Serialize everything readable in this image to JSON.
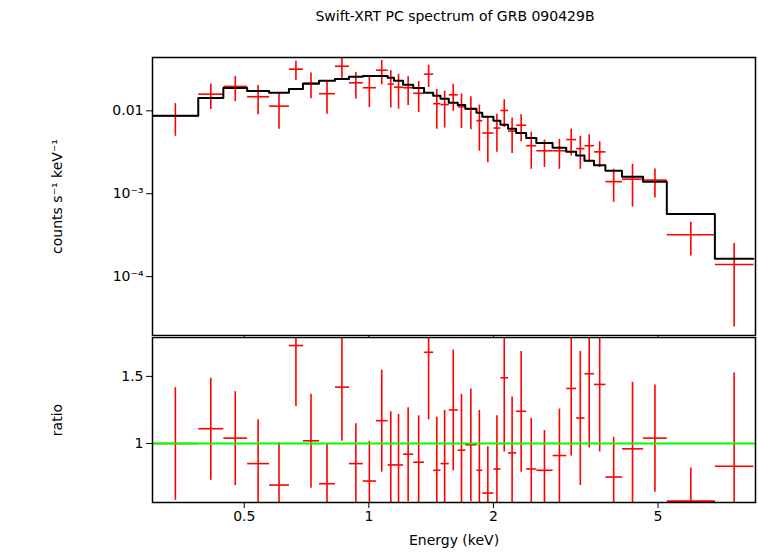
{
  "chart_data": [
    {
      "type": "scatter",
      "title": "Swift-XRT PC spectrum of GRB 090429B",
      "y_label": "counts s⁻¹ keV⁻¹",
      "log": true,
      "tick_labels": "y",
      "xlim": [
        0.3,
        8.6
      ],
      "ylim": [
        1.95e-05,
        0.044
      ],
      "xticks": [
        0.5,
        1,
        2,
        5
      ],
      "yticks": [
        0.01,
        {
          "value": 0.001,
          "label": "10⁻³"
        },
        {
          "value": 0.0001,
          "label": "10⁻⁴"
        }
      ],
      "bins": [
        0.3,
        0.387,
        0.445,
        0.508,
        0.574,
        0.641,
        0.693,
        0.758,
        0.828,
        0.895,
        0.967,
        1.04,
        1.11,
        1.15,
        1.21,
        1.28,
        1.36,
        1.43,
        1.49,
        1.56,
        1.64,
        1.71,
        1.82,
        1.88,
        2.0,
        2.08,
        2.17,
        2.27,
        2.4,
        2.54,
        2.78,
        3.0,
        3.17,
        3.32,
        3.5,
        3.73,
        4.09,
        4.6,
        5.25,
        6.86,
        8.5
      ],
      "series": [
        {
          "type": "scatter",
          "marker": "cross",
          "color": "#ff0000",
          "values": [
            0.0087,
            0.0159,
            0.0197,
            0.0148,
            0.0114,
            0.0318,
            0.0216,
            0.0161,
            0.0345,
            0.0218,
            0.019,
            0.0309,
            0.021,
            0.0193,
            0.019,
            0.0163,
            0.0277,
            0.0122,
            0.0119,
            0.0156,
            0.0112,
            0.0105,
            0.0076,
            0.0054,
            0.0062,
            0.0101,
            0.0057,
            0.0067,
            0.0038,
            0.0033,
            0.0033,
            0.0045,
            0.0035,
            0.0038,
            0.0032,
            0.0014,
            0.0015,
            0.00146,
            0.00032,
            0.00014
          ],
          "errors": [
            0.0037,
            0.0054,
            0.0066,
            0.0057,
            0.0053,
            0.0083,
            0.0074,
            0.0069,
            0.0097,
            0.0077,
            0.0079,
            0.01,
            0.01,
            0.0087,
            0.0072,
            0.0066,
            0.0083,
            0.0061,
            0.0056,
            0.0056,
            0.005,
            0.0045,
            0.0043,
            0.003,
            0.003,
            0.0037,
            0.0026,
            0.0024,
            0.0018,
            0.0012,
            0.0013,
            0.0016,
            0.0015,
            0.0014,
            0.0011,
            0.0006,
            0.0008,
            0.00056,
            0.00014,
            0.000115
          ]
        },
        {
          "type": "step",
          "color": "#000000",
          "values": [
            0.0087,
            0.0143,
            0.0189,
            0.0174,
            0.0165,
            0.0184,
            0.0212,
            0.023,
            0.0243,
            0.0257,
            0.0264,
            0.0264,
            0.025,
            0.023,
            0.0206,
            0.0189,
            0.0165,
            0.0152,
            0.014,
            0.0125,
            0.0118,
            0.0106,
            0.0095,
            0.0085,
            0.0076,
            0.0068,
            0.0061,
            0.0054,
            0.0047,
            0.0041,
            0.0036,
            0.0032,
            0.0029,
            0.0025,
            0.0022,
            0.0019,
            0.0016,
            0.0014,
            0.00057,
            0.000164
          ]
        }
      ]
    },
    {
      "type": "scatter",
      "x_label": "Energy (keV)",
      "y_label": "ratio",
      "log": "x",
      "xlim": [
        0.3,
        8.6
      ],
      "ylim": [
        0.56,
        1.79
      ],
      "xticks": [
        0.5,
        1,
        2,
        5
      ],
      "yticks": [
        1,
        1.5
      ],
      "bins": [
        0.3,
        0.387,
        0.445,
        0.508,
        0.574,
        0.641,
        0.693,
        0.758,
        0.828,
        0.895,
        0.967,
        1.04,
        1.11,
        1.15,
        1.21,
        1.28,
        1.36,
        1.43,
        1.49,
        1.56,
        1.64,
        1.71,
        1.82,
        1.88,
        2.0,
        2.08,
        2.17,
        2.27,
        2.4,
        2.54,
        2.78,
        3.0,
        3.17,
        3.32,
        3.5,
        3.73,
        4.09,
        4.6,
        5.25,
        6.86,
        8.5
      ],
      "series": [
        {
          "type": "scatter",
          "marker": "cross",
          "color": "#ff0000",
          "values": [
            1.0,
            1.11,
            1.04,
            0.85,
            0.69,
            1.73,
            1.02,
            0.7,
            1.42,
            0.85,
            0.72,
            1.17,
            0.84,
            0.84,
            0.92,
            0.86,
            1.68,
            0.8,
            0.85,
            1.25,
            0.95,
            0.99,
            0.8,
            0.63,
            0.81,
            1.49,
            0.93,
            1.24,
            0.81,
            0.8,
            0.91,
            1.41,
            1.19,
            1.52,
            1.44,
            0.75,
            0.96,
            1.04,
            0.57,
            0.83
          ],
          "errors": [
            0.42,
            0.38,
            0.35,
            0.33,
            0.32,
            0.45,
            0.35,
            0.3,
            0.4,
            0.3,
            0.3,
            0.38,
            0.4,
            0.38,
            0.35,
            0.35,
            0.5,
            0.4,
            0.4,
            0.45,
            0.42,
            0.42,
            0.45,
            0.35,
            0.4,
            0.55,
            0.42,
            0.45,
            0.38,
            0.3,
            0.35,
            0.5,
            0.5,
            0.55,
            0.5,
            0.3,
            0.5,
            0.4,
            0.25,
            0.7
          ]
        },
        {
          "type": "hline",
          "color": "#00ff00",
          "values": [
            1
          ]
        }
      ]
    }
  ]
}
